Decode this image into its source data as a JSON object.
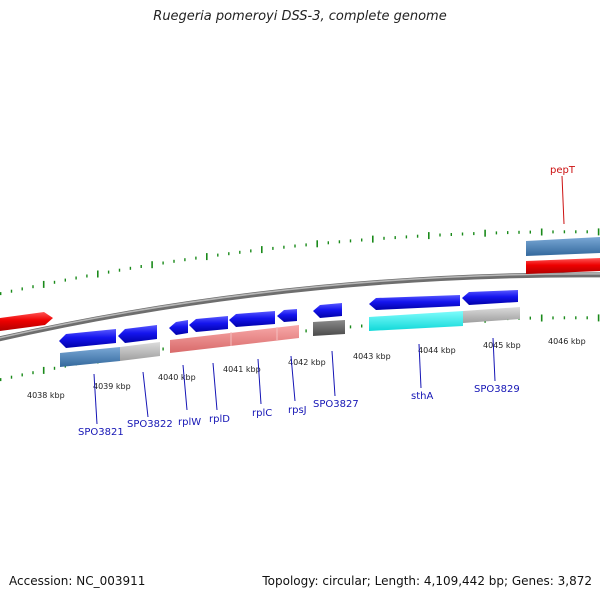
{
  "title": "Ruegeria pomeroyi DSS-3, complete genome",
  "footer": {
    "accession": "Accession: NC_003911",
    "summary": "Topology: circular; Length: 4,109,442 bp; Genes: 3,872"
  },
  "scale": {
    "labels": [
      "4038 kbp",
      "4039 kbp",
      "4040 kbp",
      "4041 kbp",
      "4042 kbp",
      "4043 kbp",
      "4044 kbp",
      "4045 kbp",
      "4046 kbp"
    ]
  },
  "genes": [
    {
      "name": "SPO3821",
      "color": "#0000cc"
    },
    {
      "name": "SPO3822",
      "color": "#0000cc"
    },
    {
      "name": "rplW",
      "color": "#0000cc"
    },
    {
      "name": "rplD",
      "color": "#0000cc"
    },
    {
      "name": "rplC",
      "color": "#0000cc"
    },
    {
      "name": "rpsJ",
      "color": "#0000cc"
    },
    {
      "name": "SPO3827",
      "color": "#0000cc"
    },
    {
      "name": "sthA",
      "color": "#0000cc"
    },
    {
      "name": "SPO3829",
      "color": "#0000cc"
    },
    {
      "name": "pepT",
      "color": "#cc0000"
    }
  ],
  "colors": {
    "backbone": "#8a8a8a",
    "tick": "#1a8a1a",
    "gene_forward": "#1a1aee",
    "gene_reverse": "#ee1111",
    "cog_steelblue": "#4a82b8",
    "cog_grey": "#bdbdbd",
    "cog_salmon": "#ee8080",
    "cog_dark": "#666666",
    "cog_cyan": "#22eeee"
  }
}
